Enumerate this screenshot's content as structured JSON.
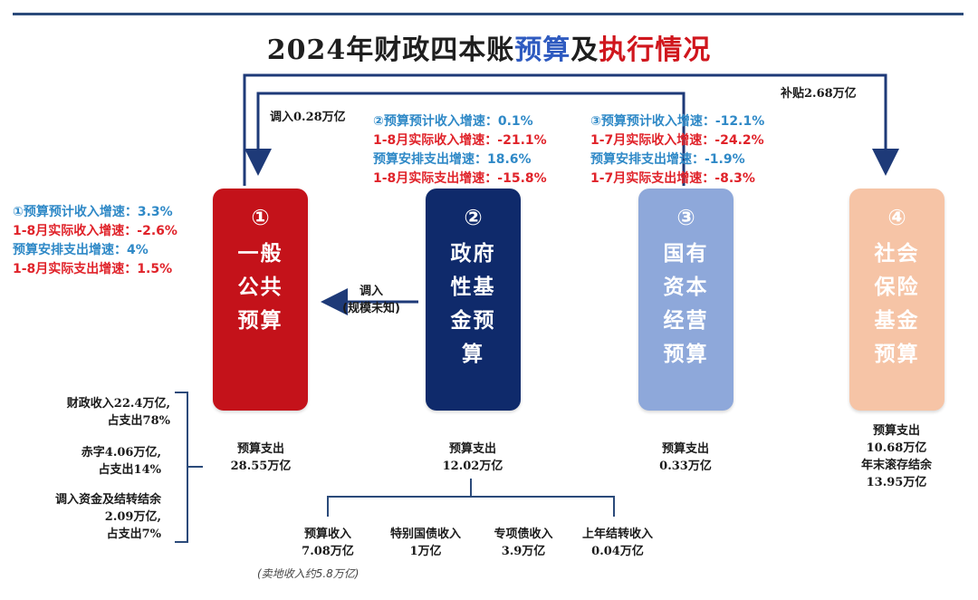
{
  "title": {
    "part1": "2024年财政四本账",
    "part2": "预算",
    "part3": "及",
    "part4": "执行情况"
  },
  "colors": {
    "box1": "#c4121a",
    "box2": "#0f2a6b",
    "box3": "#8ea8da",
    "box4": "#f6c4a6",
    "stat_blue": "#2f89c7",
    "stat_red": "#e0232a",
    "arrow": "#1e3a78"
  },
  "boxes": [
    {
      "num": "①",
      "name_lines": [
        "一般",
        "公共",
        "预算"
      ]
    },
    {
      "num": "②",
      "name_lines": [
        "政府",
        "性基",
        "金预",
        "算"
      ]
    },
    {
      "num": "③",
      "name_lines": [
        "国有",
        "资本",
        "经营",
        "预算"
      ]
    },
    {
      "num": "④",
      "name_lines": [
        "社会",
        "保险",
        "基金",
        "预算"
      ]
    }
  ],
  "stats": {
    "b1": [
      "①预算预计收入增速：3.3%",
      "1-8月实际收入增速：-2.6%",
      "预算安排支出增速：4%",
      "1-8月实际支出增速：1.5%"
    ],
    "b2": [
      "②预算预计收入增速：0.1%",
      "1-8月实际收入增速：-21.1%",
      "预算安排支出增速：18.6%",
      "1-8月实际支出增速：-15.8%"
    ],
    "b3": [
      "③预算预计收入增速：-12.1%",
      "1-7月实际收入增速：-24.2%",
      "预算安排支出增速：-1.9%",
      "1-7月实际支出增速：-8.3%"
    ]
  },
  "flows": {
    "transfer_in_top": "调入0.28万亿",
    "subsidy": "补贴2.68万亿",
    "transfer_mid_1": "调入",
    "transfer_mid_2": "(规模未知)"
  },
  "spending": {
    "b1": [
      "预算支出",
      "28.55万亿"
    ],
    "b2": [
      "预算支出",
      "12.02万亿"
    ],
    "b3": [
      "预算支出",
      "0.33万亿"
    ],
    "b4": [
      "预算支出",
      "10.68万亿",
      "年末滚存结余",
      "13.95万亿"
    ]
  },
  "left_sources": [
    [
      "财政收入22.4万亿,",
      "占支出78%"
    ],
    [
      "赤字4.06万亿,",
      "占支出14%"
    ],
    [
      "调入资金及结转结余",
      "2.09万亿,",
      "占支出7%"
    ]
  ],
  "b2_sources": [
    [
      "预算收入",
      "7.08万亿"
    ],
    [
      "特别国债收入",
      "1万亿"
    ],
    [
      "专项债收入",
      "3.9万亿"
    ],
    [
      "上年结转收入",
      "0.04万亿"
    ]
  ],
  "b2_note": "(卖地收入约5.8万亿)"
}
